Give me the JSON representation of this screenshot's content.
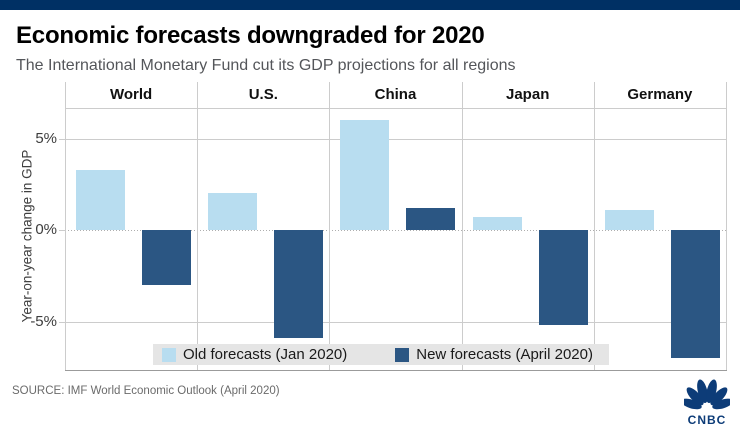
{
  "header": {
    "title": "Economic forecasts downgraded for 2020",
    "subtitle": "The International Monetary Fund cut its GDP projections for all regions"
  },
  "footer": {
    "source": "SOURCE: IMF World Economic Outlook (April 2020)",
    "brand": "CNBC"
  },
  "colors": {
    "accent_bar": "#003064",
    "old_forecast": "#b8ddf0",
    "new_forecast": "#2b5683",
    "grid": "#cccccc",
    "zero_line": "#aeaeae",
    "axis": "#9b9b9b",
    "legend_bg": "#e5e5e5",
    "logo": "#0d3c78"
  },
  "chart_data": {
    "type": "bar",
    "categories": [
      "World",
      "U.S.",
      "China",
      "Japan",
      "Germany"
    ],
    "series": [
      {
        "name": "Old forecasts (Jan 2020)",
        "values": [
          3.3,
          2.0,
          6.0,
          0.7,
          1.1
        ],
        "color": "#b8ddf0"
      },
      {
        "name": "New forecasts (April 2020)",
        "values": [
          -3.0,
          -5.9,
          1.2,
          -5.2,
          -7.0
        ],
        "color": "#2b5683"
      }
    ],
    "ylabel": "Year-on-year change in GDP",
    "yticks": [
      {
        "value": 5,
        "label": "5%"
      },
      {
        "value": 0,
        "label": "0%"
      },
      {
        "value": -5,
        "label": "-5%"
      }
    ],
    "ylim": [
      -7.7,
      6.7
    ],
    "unit": "percent",
    "grid": true,
    "legend_position": "bottom-inside"
  }
}
